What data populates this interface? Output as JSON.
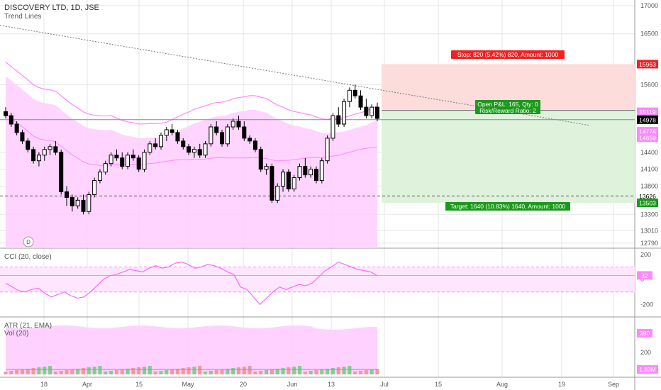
{
  "header": {
    "title": "DISCOVERY LTD, 1D, JSE",
    "subtitle": "Trend Lines"
  },
  "colors": {
    "up": "#ffffff",
    "down": "#000000",
    "pink": "#ff88ff",
    "pinkFill": "#ffccff",
    "stopFill": "#fddcdc",
    "targetFill": "#dff2dc",
    "green": "#1a9a1a",
    "red": "#ee2222",
    "grid": "#e6e6e6",
    "cci": "#ff66ff",
    "cciBand": "#ffe6ff"
  },
  "chart_data": [
    {
      "type": "candlestick",
      "title": "DISCOVERY LTD, 1D, JSE",
      "ylim": [
        12700,
        17100
      ],
      "yticks": [
        "17000",
        "16500",
        "15600",
        "14400",
        "14100",
        "13800",
        "13300",
        "13010",
        "12790"
      ],
      "xticks": [
        "18",
        "Apr",
        "15",
        "May",
        "20",
        "Jun",
        "13",
        "Jul",
        "15",
        "Aug",
        "19",
        "Sep"
      ],
      "candles": [
        [
          15120,
          15200,
          15000,
          15050
        ],
        [
          15050,
          15100,
          14850,
          14900
        ],
        [
          14900,
          14950,
          14700,
          14750
        ],
        [
          14750,
          14800,
          14550,
          14600
        ],
        [
          14600,
          14650,
          14400,
          14450
        ],
        [
          14450,
          14500,
          14200,
          14250
        ],
        [
          14250,
          14400,
          14150,
          14350
        ],
        [
          14350,
          14500,
          14250,
          14450
        ],
        [
          14450,
          14550,
          14350,
          14500
        ],
        [
          14500,
          14600,
          14350,
          14400
        ],
        [
          14400,
          14450,
          13650,
          13700
        ],
        [
          13700,
          13800,
          13450,
          13600
        ],
        [
          13600,
          13650,
          13350,
          13450
        ],
        [
          13450,
          13600,
          13400,
          13550
        ],
        [
          13550,
          13650,
          13300,
          13350
        ],
        [
          13350,
          13700,
          13300,
          13650
        ],
        [
          13650,
          13950,
          13600,
          13900
        ],
        [
          13900,
          14100,
          13850,
          14050
        ],
        [
          14050,
          14250,
          14000,
          14200
        ],
        [
          14200,
          14400,
          14150,
          14350
        ],
        [
          14350,
          14450,
          14250,
          14300
        ],
        [
          14300,
          14400,
          14100,
          14150
        ],
        [
          14150,
          14400,
          14100,
          14350
        ],
        [
          14350,
          14450,
          14250,
          14300
        ],
        [
          14300,
          14350,
          14050,
          14100
        ],
        [
          14100,
          14450,
          14050,
          14400
        ],
        [
          14400,
          14600,
          14350,
          14550
        ],
        [
          14550,
          14650,
          14450,
          14500
        ],
        [
          14500,
          14750,
          14450,
          14700
        ],
        [
          14700,
          14850,
          14600,
          14800
        ],
        [
          14800,
          14900,
          14700,
          14750
        ],
        [
          14750,
          14800,
          14550,
          14600
        ],
        [
          14600,
          14650,
          14450,
          14500
        ],
        [
          14500,
          14550,
          14350,
          14400
        ],
        [
          14400,
          14500,
          14300,
          14450
        ],
        [
          14450,
          14550,
          14300,
          14350
        ],
        [
          14350,
          14600,
          14300,
          14550
        ],
        [
          14550,
          14900,
          14500,
          14850
        ],
        [
          14850,
          14950,
          14700,
          14750
        ],
        [
          14750,
          14800,
          14500,
          14550
        ],
        [
          14550,
          14900,
          14500,
          14850
        ],
        [
          14850,
          15000,
          14800,
          14950
        ],
        [
          14950,
          15050,
          14800,
          14850
        ],
        [
          14850,
          14950,
          14600,
          14650
        ],
        [
          14650,
          14700,
          14550,
          14600
        ],
        [
          14600,
          14650,
          14400,
          14450
        ],
        [
          14450,
          14500,
          14050,
          14100
        ],
        [
          14100,
          14200,
          14000,
          14150
        ],
        [
          14150,
          14200,
          13500,
          13550
        ],
        [
          13550,
          13850,
          13500,
          13800
        ],
        [
          13800,
          14100,
          13700,
          14050
        ],
        [
          14050,
          14100,
          13700,
          13750
        ],
        [
          13750,
          14000,
          13700,
          13950
        ],
        [
          13950,
          14200,
          13900,
          14150
        ],
        [
          14150,
          14300,
          13950,
          14000
        ],
        [
          14000,
          14150,
          13950,
          14100
        ],
        [
          14100,
          14150,
          13850,
          13900
        ],
        [
          13900,
          14300,
          13850,
          14250
        ],
        [
          14250,
          14700,
          14200,
          14650
        ],
        [
          14650,
          15100,
          14600,
          15050
        ],
        [
          15050,
          15200,
          14850,
          14900
        ],
        [
          14900,
          15350,
          14850,
          15300
        ],
        [
          15300,
          15550,
          15200,
          15500
        ],
        [
          15500,
          15600,
          15350,
          15400
        ],
        [
          15400,
          15500,
          15150,
          15200
        ],
        [
          15200,
          15350,
          15000,
          15050
        ],
        [
          15050,
          15250,
          15000,
          15200
        ],
        [
          15200,
          15280,
          14950,
          15000
        ]
      ],
      "indicators": [
        "Trend Lines",
        "MA envelope (pink)"
      ]
    },
    {
      "type": "line",
      "title": "CCI (20, close)",
      "ylim": [
        -300,
        250
      ],
      "yticks": [
        "200",
        "0",
        "-200"
      ],
      "last_value": "32",
      "values": [
        -30,
        -60,
        -90,
        -100,
        -80,
        -70,
        -110,
        -140,
        -120,
        -100,
        -130,
        -150,
        -140,
        -100,
        -50,
        0,
        30,
        40,
        60,
        80,
        70,
        60,
        90,
        110,
        90,
        100,
        130,
        140,
        120,
        90,
        100,
        120,
        110,
        90,
        60,
        40,
        -60,
        -80,
        -140,
        -200,
        -150,
        -100,
        -60,
        -80,
        -60,
        -40,
        -50,
        -30,
        20,
        70,
        100,
        140,
        120,
        100,
        80,
        70,
        60,
        30
      ]
    },
    {
      "type": "area",
      "title": "ATR (21, EMA)",
      "last_value": "390",
      "yticks": [
        "200"
      ]
    },
    {
      "type": "bar",
      "title": "Vol (20)",
      "last_value": "1.83M"
    }
  ],
  "labels": {
    "stop": "Stop: 820 (5.42%) 820, Amount: 1000",
    "target": "Target: 1640 (10.83%) 1640, Amount: 1000",
    "pnl1": "Open P&L: 165, Qty: 0",
    "pnl2": "Risk/Reward Ratio: 2",
    "price_stop": "15963",
    "price_entry": "15143",
    "price_1": "15119",
    "price_last": "14978",
    "price_ma1": "14774",
    "price_ma2": "14659",
    "price_ref": "13626",
    "price_target": "13503",
    "d_marker": "D"
  }
}
